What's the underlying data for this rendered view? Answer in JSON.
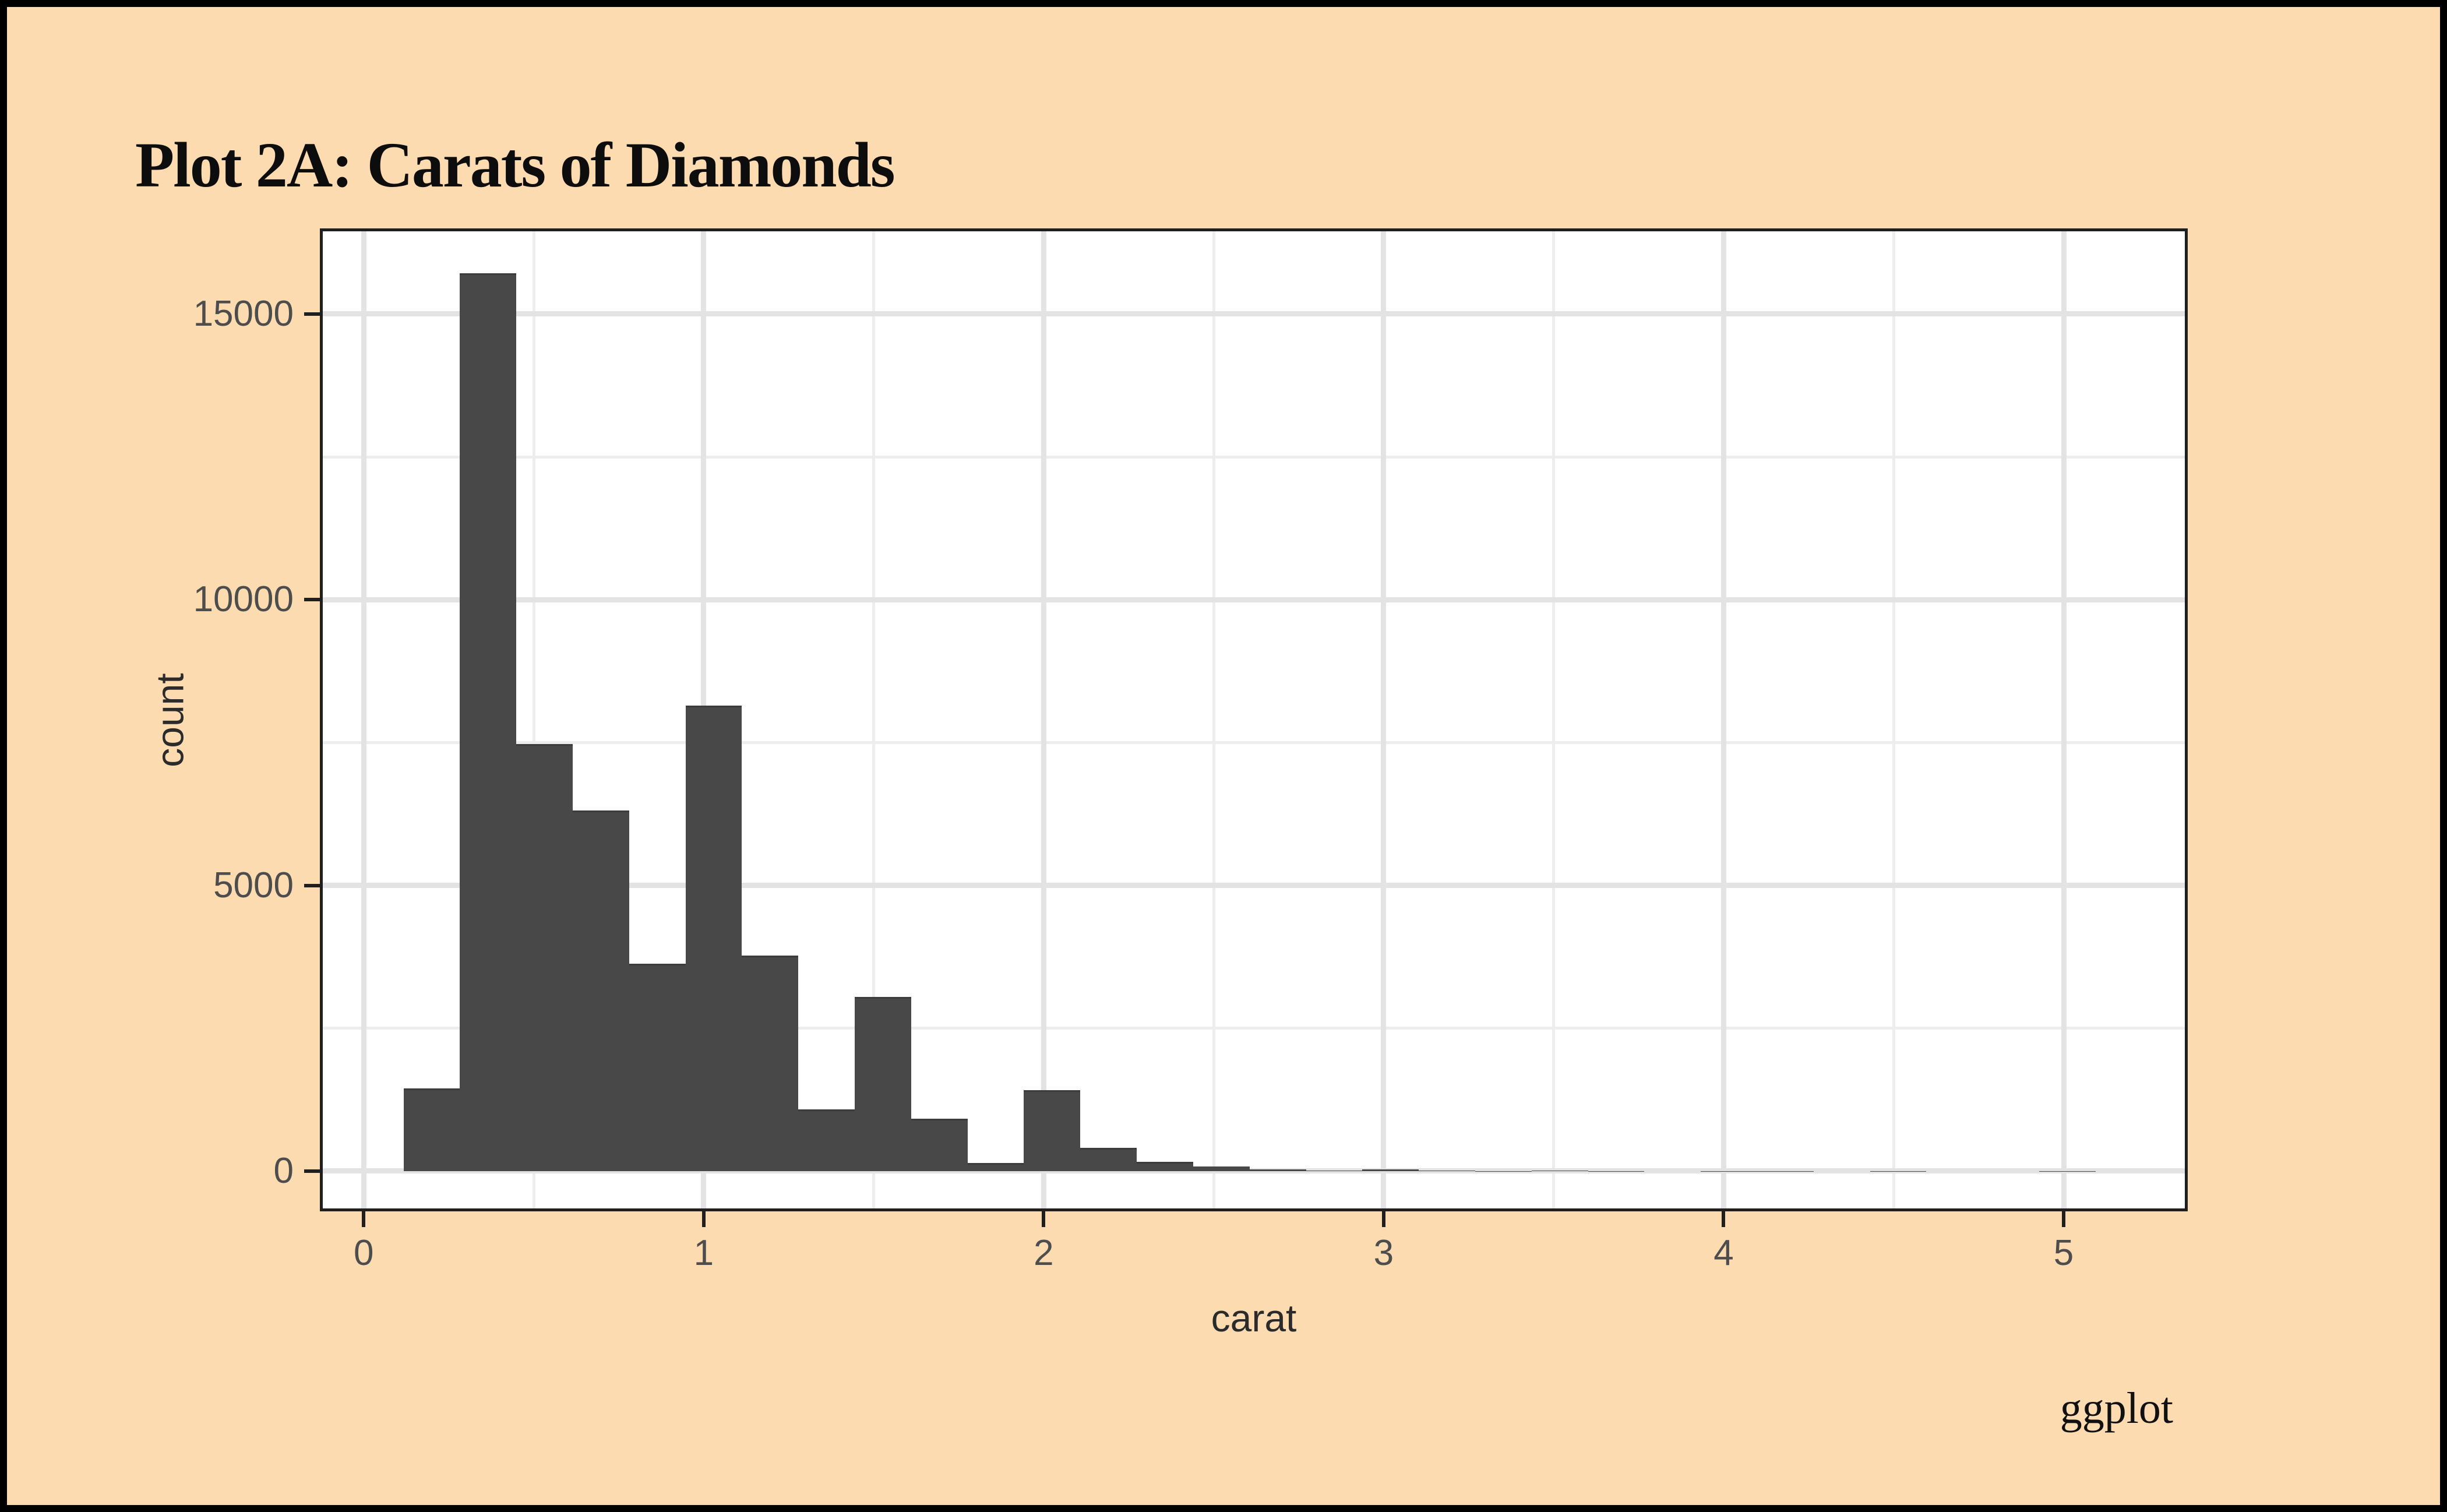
{
  "title": "Plot 2A: Carats of Diamonds",
  "caption": "ggplot",
  "chart_data": {
    "type": "bar",
    "subtype": "histogram",
    "title": "Plot 2A: Carats of Diamonds",
    "xlabel": "carat",
    "ylabel": "count",
    "caption": "ggplot",
    "bin_start": 0.117,
    "bin_width": 0.1659,
    "counts": [
      1445,
      15710,
      7470,
      6310,
      3630,
      8150,
      3775,
      1085,
      3045,
      915,
      140,
      1415,
      405,
      160,
      80,
      30,
      8,
      27,
      12,
      2,
      5,
      2,
      0,
      4,
      1,
      0,
      1,
      0,
      0,
      1
    ],
    "x_ticks": [
      0,
      1,
      2,
      3,
      4,
      5
    ],
    "x_minor_ticks": [
      0.5,
      1.5,
      2.5,
      3.5,
      4.5
    ],
    "y_ticks": [
      0,
      5000,
      10000,
      15000
    ],
    "y_minor_ticks": [
      2500,
      7500,
      12500
    ],
    "xlim": [
      -0.129,
      5.365
    ],
    "ylim": [
      -704,
      16499
    ],
    "grid": "major+minor",
    "legend": "none",
    "colors": {
      "bar_fill": "#484848",
      "bar_edge": "#3C3C3C",
      "background": "#FCDBB0",
      "panel": "#FFFFFF",
      "grid_major": "#E3E3E3",
      "grid_minor": "#EDEDED",
      "axis_text": "#4D4D4D",
      "title_text": "#0D0D0D",
      "panel_border": "#1F1F1F",
      "frame": "#000000"
    }
  }
}
